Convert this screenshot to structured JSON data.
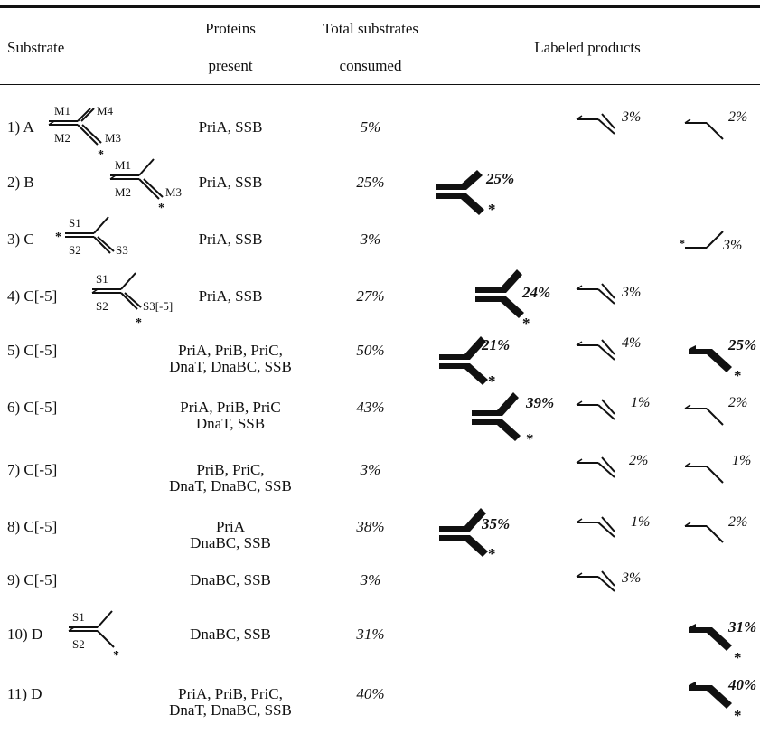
{
  "header": {
    "substrate": "Substrate",
    "proteins_line1": "Proteins",
    "proteins_line2": "present",
    "total_line1": "Total substrates",
    "total_line2": "consumed",
    "labeled": "Labeled products"
  },
  "diagram_labels": {
    "M1": "M1",
    "M2": "M2",
    "M3": "M3",
    "M4": "M4",
    "S1": "S1",
    "S2": "S2",
    "S3": "S3",
    "S3m5": "S3[-5]",
    "star": "*"
  },
  "rows": [
    {
      "substrate": "1) A",
      "proteins": [
        "PriA, SSB"
      ],
      "total": "5%",
      "products": [
        {
          "type": "thin-arm",
          "pct": "3%"
        },
        {
          "type": "thin-bend",
          "pct": "2%"
        }
      ]
    },
    {
      "substrate": "2) B",
      "proteins": [
        "PriA, SSB"
      ],
      "total": "25%",
      "products": [
        {
          "type": "bold-fork",
          "pct": "25%"
        }
      ]
    },
    {
      "substrate": "3) C",
      "proteins": [
        "PriA, SSB"
      ],
      "total": "3%",
      "products": [
        {
          "type": "thin-single",
          "pct": "3%"
        }
      ]
    },
    {
      "substrate": "4) C[-5]",
      "proteins": [
        "PriA, SSB"
      ],
      "total": "27%",
      "products": [
        {
          "type": "bold-fork",
          "pct": "24%"
        },
        {
          "type": "thin-arm",
          "pct": "3%"
        }
      ]
    },
    {
      "substrate": "5) C[-5]",
      "proteins": [
        "PriA, PriB, PriC,",
        "DnaT, DnaBC, SSB"
      ],
      "total": "50%",
      "products": [
        {
          "type": "bold-fork",
          "pct": "21%"
        },
        {
          "type": "thin-arm",
          "pct": "4%"
        },
        {
          "type": "bold-bend",
          "pct": "25%"
        }
      ]
    },
    {
      "substrate": "6) C[-5]",
      "proteins": [
        "PriA, PriB, PriC",
        "DnaT, SSB"
      ],
      "total": "43%",
      "products": [
        {
          "type": "bold-fork",
          "pct": "39%"
        },
        {
          "type": "thin-arm",
          "pct": "1%"
        },
        {
          "type": "thin-bend",
          "pct": "2%"
        }
      ]
    },
    {
      "substrate": "7) C[-5]",
      "proteins": [
        "PriB, PriC,",
        "DnaT, DnaBC, SSB"
      ],
      "total": "3%",
      "products": [
        {
          "type": "thin-arm",
          "pct": "2%"
        },
        {
          "type": "thin-bend",
          "pct": "1%"
        }
      ]
    },
    {
      "substrate": "8) C[-5]",
      "proteins": [
        "PriA",
        "DnaBC, SSB"
      ],
      "total": "38%",
      "products": [
        {
          "type": "bold-fork",
          "pct": "35%"
        },
        {
          "type": "thin-arm",
          "pct": "1%"
        },
        {
          "type": "thin-bend",
          "pct": "2%"
        }
      ]
    },
    {
      "substrate": "9) C[-5]",
      "proteins": [
        "DnaBC, SSB"
      ],
      "total": "3%",
      "products": [
        {
          "type": "thin-arm",
          "pct": "3%"
        }
      ]
    },
    {
      "substrate": "10) D",
      "proteins": [
        "DnaBC, SSB"
      ],
      "total": "31%",
      "products": [
        {
          "type": "bold-bend",
          "pct": "31%"
        }
      ]
    },
    {
      "substrate": "11) D",
      "proteins": [
        "PriA, PriB, PriC,",
        "DnaT, DnaBC, SSB"
      ],
      "total": "40%",
      "products": [
        {
          "type": "bold-bend",
          "pct": "40%"
        }
      ]
    }
  ]
}
